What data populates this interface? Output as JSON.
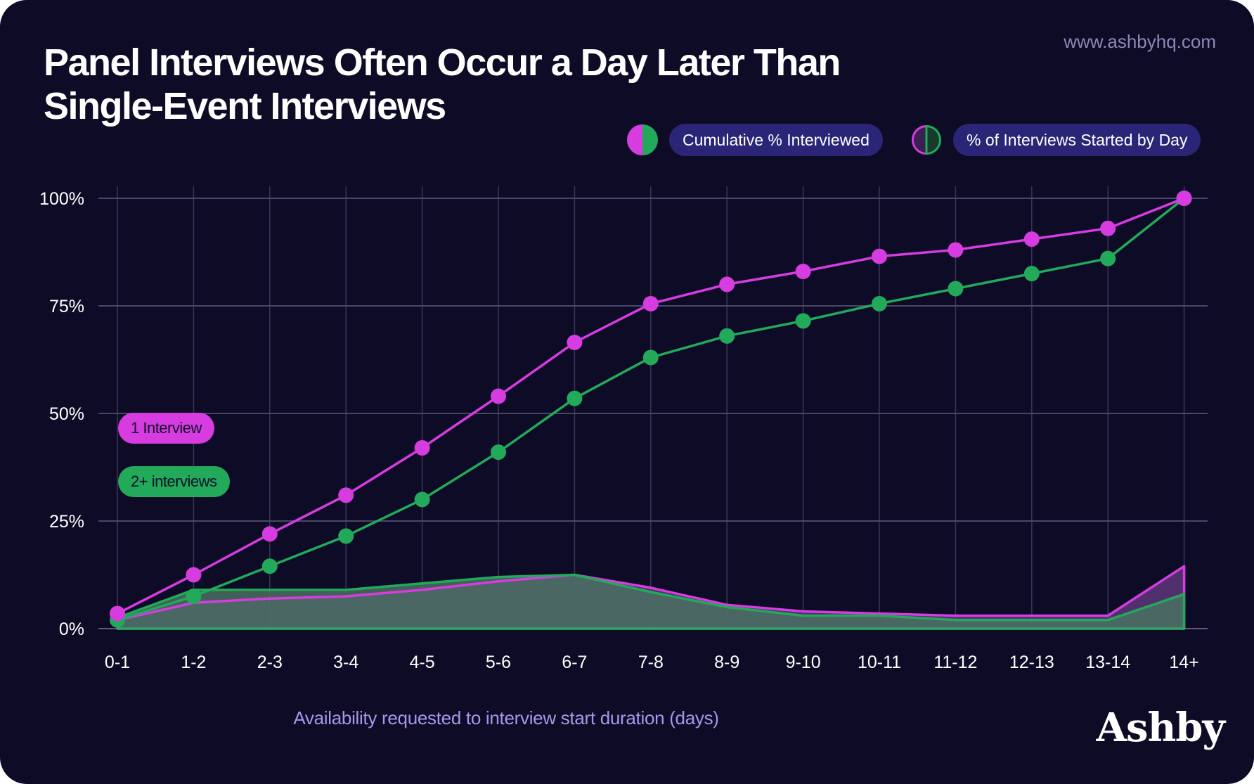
{
  "header": {
    "title_line1": "Panel Interviews Often Occur a Day Later Than",
    "title_line2": "Single-Event Interviews",
    "website": "www.ashbyhq.com",
    "brand": "Ashby"
  },
  "legend": {
    "cumulative_label": "Cumulative % Interviewed",
    "started_label": "% of Interviews Started by Day"
  },
  "colors": {
    "background": "#0e0b26",
    "one_interview": "#d63ce0",
    "two_plus": "#22a95a",
    "area_fill": "#4a7162",
    "grid": "#4a4668",
    "legend_pill": "#2b2577",
    "axis_label": "#a797ea"
  },
  "chart_data": {
    "type": "line",
    "title": "Panel Interviews Often Occur a Day Later Than Single-Event Interviews",
    "xlabel": "Availability requested to interview start duration (days)",
    "ylabel": "",
    "categories": [
      "0-1",
      "1-2",
      "2-3",
      "3-4",
      "4-5",
      "5-6",
      "6-7",
      "7-8",
      "8-9",
      "9-10",
      "10-11",
      "11-12",
      "12-13",
      "13-14",
      "14+"
    ],
    "ylim": [
      0,
      100
    ],
    "yticks": [
      "0%",
      "25%",
      "50%",
      "75%",
      "100%"
    ],
    "grid": true,
    "legend_placement": "top-right",
    "series": [
      {
        "name": "1 Interview",
        "kind": "Cumulative % Interviewed",
        "color": "#d63ce0",
        "values": [
          3.5,
          12.5,
          22,
          31,
          42,
          54,
          66.5,
          75.5,
          80,
          83,
          86.5,
          88,
          90.5,
          93,
          100
        ]
      },
      {
        "name": "2+ interviews",
        "kind": "Cumulative % Interviewed",
        "color": "#22a95a",
        "values": [
          2,
          7.5,
          14.5,
          21.5,
          30,
          41,
          53.5,
          63,
          68,
          71.5,
          75.5,
          79,
          82.5,
          86,
          100
        ]
      },
      {
        "name": "1 Interview",
        "kind": "% of Interviews Started by Day",
        "color": "#d63ce0",
        "values": [
          2,
          6,
          7,
          7.5,
          9,
          11,
          12.5,
          9.5,
          5.5,
          4,
          3.5,
          3,
          3,
          3,
          14.5
        ]
      },
      {
        "name": "2+ interviews",
        "kind": "% of Interviews Started by Day",
        "color": "#22a95a",
        "values": [
          2.5,
          9,
          9,
          9,
          10.5,
          12,
          12.5,
          8.5,
          5,
          3,
          3,
          2,
          2,
          2,
          8
        ]
      }
    ]
  }
}
